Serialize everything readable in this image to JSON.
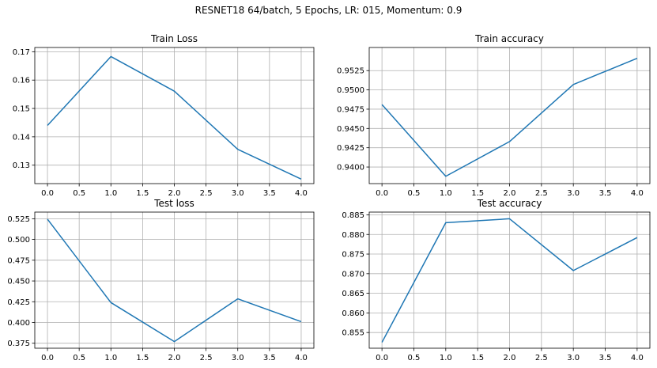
{
  "figure": {
    "suptitle": "RESNET18 64/batch, 5 Epochs, LR: 015, Momentum: 0.9"
  },
  "colors": {
    "line": "#1f77b4",
    "grid": "#b0b0b0",
    "axes": "#000000",
    "background": "#ffffff"
  },
  "chart_data": [
    {
      "type": "line",
      "title": "Train Loss",
      "xlabel": "",
      "ylabel": "",
      "grid": true,
      "x": [
        0,
        1,
        2,
        3,
        4
      ],
      "series": [
        {
          "values": [
            0.144,
            0.1683,
            0.1561,
            0.1356,
            0.1251
          ]
        }
      ],
      "xlim": [
        -0.2,
        4.2
      ],
      "ylim": [
        0.1235,
        0.1715
      ],
      "xticks": [
        "0.0",
        "0.5",
        "1.0",
        "1.5",
        "2.0",
        "2.5",
        "3.0",
        "3.5",
        "4.0"
      ],
      "yticks": [
        "0.13",
        "0.14",
        "0.15",
        "0.16",
        "0.17"
      ]
    },
    {
      "type": "line",
      "title": "Train accuracy",
      "xlabel": "",
      "ylabel": "",
      "grid": true,
      "x": [
        0,
        1,
        2,
        3,
        4
      ],
      "series": [
        {
          "values": [
            0.9481,
            0.9388,
            0.9433,
            0.9507,
            0.9541
          ]
        }
      ],
      "xlim": [
        -0.2,
        4.2
      ],
      "ylim": [
        0.93785,
        0.9555
      ],
      "xticks": [
        "0.0",
        "0.5",
        "1.0",
        "1.5",
        "2.0",
        "2.5",
        "3.0",
        "3.5",
        "4.0"
      ],
      "yticks": [
        "0.9400",
        "0.9425",
        "0.9450",
        "0.9475",
        "0.9500",
        "0.9525"
      ]
    },
    {
      "type": "line",
      "title": "Test loss",
      "xlabel": "",
      "ylabel": "",
      "grid": true,
      "x": [
        0,
        1,
        2,
        3,
        4
      ],
      "series": [
        {
          "values": [
            0.5245,
            0.424,
            0.377,
            0.4285,
            0.401
          ]
        }
      ],
      "xlim": [
        -0.2,
        4.2
      ],
      "ylim": [
        0.369,
        0.533
      ],
      "xticks": [
        "0.0",
        "0.5",
        "1.0",
        "1.5",
        "2.0",
        "2.5",
        "3.0",
        "3.5",
        "4.0"
      ],
      "yticks": [
        "0.375",
        "0.400",
        "0.425",
        "0.450",
        "0.475",
        "0.500",
        "0.525"
      ]
    },
    {
      "type": "line",
      "title": "Test accuracy",
      "xlabel": "",
      "ylabel": "",
      "grid": true,
      "x": [
        0,
        1,
        2,
        3,
        4
      ],
      "series": [
        {
          "values": [
            0.8525,
            0.883,
            0.884,
            0.8708,
            0.8792
          ]
        }
      ],
      "xlim": [
        -0.2,
        4.2
      ],
      "ylim": [
        0.851,
        0.8857
      ],
      "xticks": [
        "0.0",
        "0.5",
        "1.0",
        "1.5",
        "2.0",
        "2.5",
        "3.0",
        "3.5",
        "4.0"
      ],
      "yticks": [
        "0.855",
        "0.860",
        "0.865",
        "0.870",
        "0.875",
        "0.880",
        "0.885"
      ]
    }
  ]
}
